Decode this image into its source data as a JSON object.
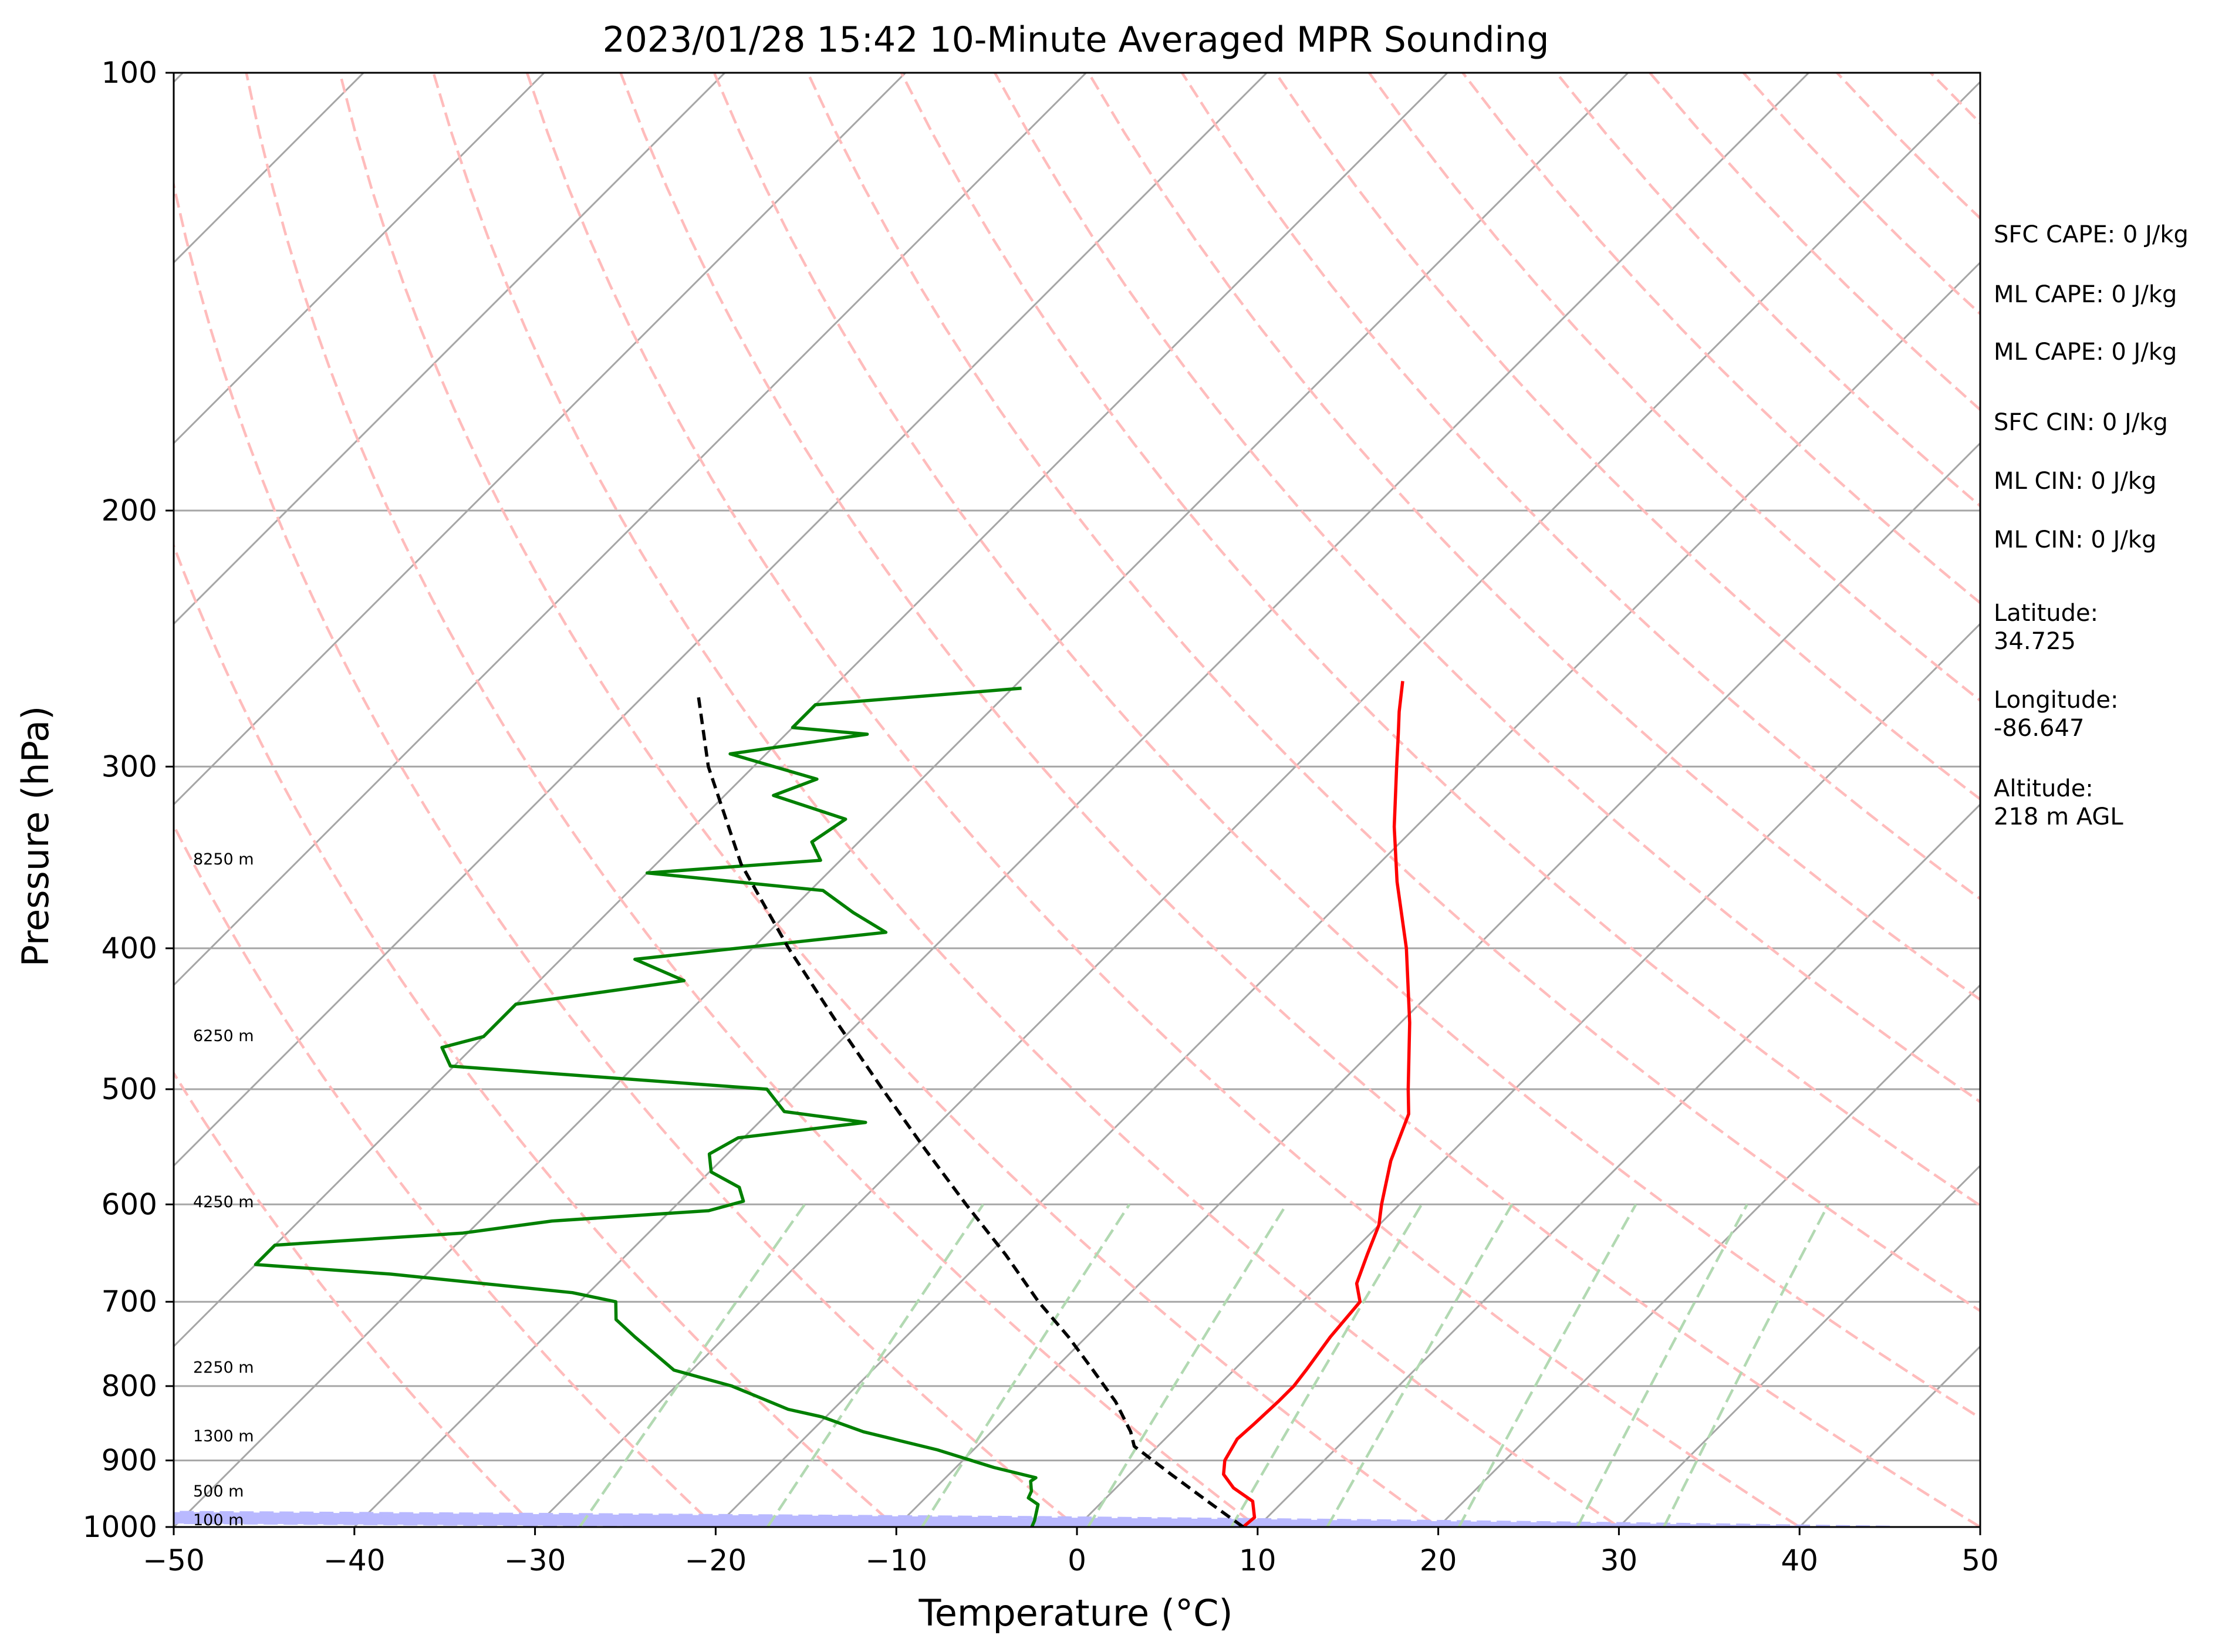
{
  "chart_data": {
    "type": "skew-t",
    "title": "2023/01/28 15:42 10-Minute Averaged MPR Sounding",
    "xlabel": "Temperature (°C)",
    "ylabel": "Pressure (hPa)",
    "xlim": [
      -50,
      50
    ],
    "ylim": [
      1000,
      100
    ],
    "y_scale": "log",
    "x_ticks": [
      "−50",
      "−40",
      "−30",
      "−20",
      "−10",
      "0",
      "10",
      "20",
      "30",
      "40",
      "50"
    ],
    "y_ticks": [
      {
        "p": 100,
        "label": "100"
      },
      {
        "p": 200,
        "label": "200"
      },
      {
        "p": 300,
        "label": "300"
      },
      {
        "p": 400,
        "label": "400"
      },
      {
        "p": 500,
        "label": "500"
      },
      {
        "p": 600,
        "label": "600"
      },
      {
        "p": 700,
        "label": "700"
      },
      {
        "p": 800,
        "label": "800"
      },
      {
        "p": 900,
        "label": "900"
      },
      {
        "p": 1000,
        "label": "1000"
      }
    ],
    "grid": true,
    "background_lines": [
      "isotherms",
      "dry adiabats",
      "moist adiabats",
      "mixing ratio lines"
    ],
    "colors": {
      "temperature": "#ff0000",
      "dewpoint": "#008000",
      "parcel": "#000000",
      "isotherm": "#a6a6a6",
      "dry_adiabat": "#ffbcbc",
      "moist_adiabat": "#b9b9ff",
      "mixing_ratio": "#b2d9b2"
    },
    "series": [
      {
        "key": "temperature",
        "values": [
          {
            "p": 1000,
            "t": 9.2
          },
          {
            "p": 985,
            "t": 9.3
          },
          {
            "p": 960,
            "t": 8.3
          },
          {
            "p": 940,
            "t": 6.5
          },
          {
            "p": 920,
            "t": 5.2
          },
          {
            "p": 900,
            "t": 4.5
          },
          {
            "p": 870,
            "t": 4.0
          },
          {
            "p": 850,
            "t": 4.1
          },
          {
            "p": 820,
            "t": 4.2
          },
          {
            "p": 800,
            "t": 4.2
          },
          {
            "p": 780,
            "t": 4.0
          },
          {
            "p": 740,
            "t": 3.5
          },
          {
            "p": 700,
            "t": 3.2
          },
          {
            "p": 680,
            "t": 2.0
          },
          {
            "p": 650,
            "t": 1.0
          },
          {
            "p": 620,
            "t": 0.0
          },
          {
            "p": 600,
            "t": -1.0
          },
          {
            "p": 560,
            "t": -2.9
          },
          {
            "p": 520,
            "t": -4.5
          },
          {
            "p": 500,
            "t": -5.9
          },
          {
            "p": 450,
            "t": -9.5
          },
          {
            "p": 400,
            "t": -13.8
          },
          {
            "p": 360,
            "t": -18.0
          },
          {
            "p": 330,
            "t": -21.2
          },
          {
            "p": 300,
            "t": -24.4
          },
          {
            "p": 285,
            "t": -26.1
          },
          {
            "p": 275,
            "t": -27.3
          },
          {
            "p": 262,
            "t": -28.8
          }
        ]
      },
      {
        "key": "dewpoint",
        "values": [
          {
            "p": 1000,
            "t": -2.5
          },
          {
            "p": 990,
            "t": -2.7
          },
          {
            "p": 965,
            "t": -3.4
          },
          {
            "p": 955,
            "t": -4.3
          },
          {
            "p": 945,
            "t": -4.5
          },
          {
            "p": 930,
            "t": -5.1
          },
          {
            "p": 925,
            "t": -5.0
          },
          {
            "p": 910,
            "t": -7.9
          },
          {
            "p": 885,
            "t": -12.0
          },
          {
            "p": 860,
            "t": -17.1
          },
          {
            "p": 840,
            "t": -20.2
          },
          {
            "p": 830,
            "t": -22.5
          },
          {
            "p": 800,
            "t": -26.9
          },
          {
            "p": 780,
            "t": -31.0
          },
          {
            "p": 740,
            "t": -35.0
          },
          {
            "p": 720,
            "t": -37.0
          },
          {
            "p": 700,
            "t": -38.0
          },
          {
            "p": 690,
            "t": -40.9
          },
          {
            "p": 670,
            "t": -52.0
          },
          {
            "p": 660,
            "t": -60.0
          },
          {
            "p": 640,
            "t": -60.0
          },
          {
            "p": 628,
            "t": -50.3
          },
          {
            "p": 616,
            "t": -46.0
          },
          {
            "p": 606,
            "t": -37.9
          },
          {
            "p": 597,
            "t": -36.5
          },
          {
            "p": 584,
            "t": -37.5
          },
          {
            "p": 570,
            "t": -39.9
          },
          {
            "p": 554,
            "t": -41.0
          },
          {
            "p": 540,
            "t": -40.3
          },
          {
            "p": 527,
            "t": -34.1
          },
          {
            "p": 518,
            "t": -39.2
          },
          {
            "p": 500,
            "t": -41.4
          },
          {
            "p": 482,
            "t": -60.2
          },
          {
            "p": 468,
            "t": -61.7
          },
          {
            "p": 460,
            "t": -60.0
          },
          {
            "p": 437,
            "t": -60.0
          },
          {
            "p": 421,
            "t": -52.0
          },
          {
            "p": 407,
            "t": -55.9
          },
          {
            "p": 390,
            "t": -43.5
          },
          {
            "p": 378,
            "t": -46.4
          },
          {
            "p": 365,
            "t": -49.3
          },
          {
            "p": 355,
            "t": -60.0
          },
          {
            "p": 348,
            "t": -51.1
          },
          {
            "p": 338,
            "t": -52.6
          },
          {
            "p": 326,
            "t": -52.0
          },
          {
            "p": 314,
            "t": -57.3
          },
          {
            "p": 306,
            "t": -55.8
          },
          {
            "p": 294,
            "t": -62.0
          },
          {
            "p": 285,
            "t": -55.5
          },
          {
            "p": 282,
            "t": -60.0
          },
          {
            "p": 272,
            "t": -60.0
          },
          {
            "p": 265,
            "t": -49.5
          }
        ]
      },
      {
        "key": "parcel",
        "values": [
          {
            "p": 1000,
            "t": 9.2
          },
          {
            "p": 960,
            "t": 5.8
          },
          {
            "p": 920,
            "t": 2.3
          },
          {
            "p": 880,
            "t": -1.3
          },
          {
            "p": 860,
            "t": -2.3
          },
          {
            "p": 820,
            "t": -4.8
          },
          {
            "p": 780,
            "t": -7.8
          },
          {
            "p": 740,
            "t": -11.0
          },
          {
            "p": 700,
            "t": -14.6
          },
          {
            "p": 650,
            "t": -19.0
          },
          {
            "p": 600,
            "t": -24.0
          },
          {
            "p": 550,
            "t": -29.3
          },
          {
            "p": 500,
            "t": -35.0
          },
          {
            "p": 450,
            "t": -41.2
          },
          {
            "p": 400,
            "t": -48.0
          },
          {
            "p": 350,
            "t": -55.3
          },
          {
            "p": 300,
            "t": -62.5
          },
          {
            "p": 268,
            "t": -67.0
          }
        ]
      }
    ],
    "height_labels": [
      {
        "p": 988,
        "label": "100 m"
      },
      {
        "p": 944,
        "label": "500 m"
      },
      {
        "p": 865,
        "label": "1300 m"
      },
      {
        "p": 776,
        "label": "2250 m"
      },
      {
        "p": 597,
        "label": "4250 m"
      },
      {
        "p": 459,
        "label": "6250 m"
      },
      {
        "p": 347,
        "label": "8250 m"
      }
    ],
    "annotations": [
      {
        "label": "SFC CAPE: 0 J/kg",
        "line2": ""
      },
      {
        "label": "ML CAPE: 0 J/kg",
        "line2": ""
      },
      {
        "label": "ML CAPE: 0 J/kg",
        "line2": ""
      },
      {
        "label": "SFC CIN: 0 J/kg",
        "line2": ""
      },
      {
        "label": "ML CIN: 0 J/kg",
        "line2": ""
      },
      {
        "label": "ML CIN: 0 J/kg",
        "line2": ""
      },
      {
        "label": "Latitude:",
        "line2": "34.725"
      },
      {
        "label": "Longitude:",
        "line2": "-86.647"
      },
      {
        "label": "Altitude:",
        "line2": "218 m AGL"
      }
    ]
  }
}
